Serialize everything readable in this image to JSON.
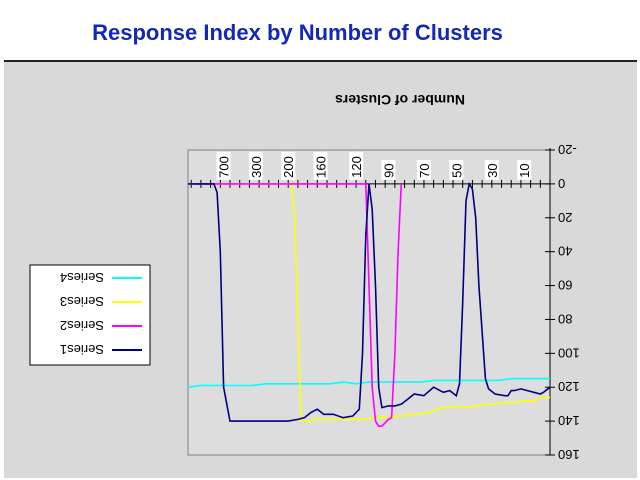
{
  "title": "Response Index by Number of Clusters",
  "chart_data": {
    "type": "line",
    "orientation": "rotated-180",
    "xlabel": "Number of Clusters",
    "ylabel": "",
    "x_tick_labels": [
      "700",
      "300",
      "200",
      "160",
      "120",
      "90",
      "70",
      "50",
      "30",
      "10"
    ],
    "y_ticks": [
      -20,
      0,
      20,
      40,
      60,
      80,
      100,
      120,
      140,
      160
    ],
    "ylim": [
      -20,
      160
    ],
    "grid": false,
    "legend": "left",
    "series": [
      {
        "name": "Series1",
        "color": "#000080",
        "points": [
          [
            0,
            120
          ],
          [
            2,
            123
          ],
          [
            3,
            124
          ],
          [
            5,
            123
          ],
          [
            7,
            122
          ],
          [
            9,
            121
          ],
          [
            11,
            122
          ],
          [
            12,
            122
          ],
          [
            13,
            125
          ],
          [
            14,
            125
          ],
          [
            17,
            124
          ],
          [
            19,
            121
          ],
          [
            20,
            115
          ],
          [
            22,
            60
          ],
          [
            23,
            20
          ],
          [
            24,
            3
          ],
          [
            25,
            0
          ],
          [
            26,
            10
          ],
          [
            27,
            70
          ],
          [
            28,
            118
          ],
          [
            29,
            125
          ],
          [
            31,
            122
          ],
          [
            33,
            123
          ],
          [
            36,
            120
          ],
          [
            39,
            125
          ],
          [
            42,
            124
          ],
          [
            44,
            127
          ],
          [
            46,
            130
          ],
          [
            48,
            131
          ],
          [
            50,
            131
          ],
          [
            52,
            132
          ],
          [
            53,
            120
          ],
          [
            54,
            60
          ],
          [
            55,
            15
          ],
          [
            56,
            0
          ],
          [
            57,
            30
          ],
          [
            58,
            100
          ],
          [
            59,
            133
          ],
          [
            61,
            137
          ],
          [
            64,
            138
          ],
          [
            67,
            136
          ],
          [
            70,
            136
          ],
          [
            72,
            133
          ],
          [
            74,
            135
          ],
          [
            76,
            138
          ],
          [
            78,
            139
          ],
          [
            81,
            140
          ],
          [
            84,
            140
          ],
          [
            87,
            140
          ],
          [
            90,
            140
          ],
          [
            93,
            140
          ],
          [
            96,
            140
          ],
          [
            99,
            140
          ],
          [
            101,
            120
          ],
          [
            102,
            40
          ],
          [
            103,
            5
          ],
          [
            104,
            0
          ],
          [
            107,
            0
          ],
          [
            112,
            0
          ]
        ]
      },
      {
        "name": "Series2",
        "color": "#ff00ff",
        "points": [
          [
            46,
            0
          ],
          [
            47,
            40
          ],
          [
            48,
            100
          ],
          [
            49,
            138
          ],
          [
            50,
            139
          ],
          [
            52,
            143
          ],
          [
            53,
            143
          ],
          [
            54,
            140
          ],
          [
            55,
            120
          ],
          [
            56,
            60
          ],
          [
            57,
            0
          ],
          [
            74,
            0
          ],
          [
            110,
            0
          ]
        ]
      },
      {
        "name": "Series3",
        "color": "#ffff00",
        "points": [
          [
            0,
            126
          ],
          [
            3,
            126
          ],
          [
            5,
            128
          ],
          [
            8,
            128
          ],
          [
            11,
            129
          ],
          [
            14,
            129
          ],
          [
            17,
            130
          ],
          [
            20,
            130
          ],
          [
            23,
            131
          ],
          [
            26,
            132
          ],
          [
            29,
            131
          ],
          [
            31,
            132
          ],
          [
            33,
            132
          ],
          [
            35,
            133
          ],
          [
            37,
            135
          ],
          [
            39,
            135
          ],
          [
            41,
            136
          ],
          [
            43,
            136
          ],
          [
            45,
            137
          ],
          [
            47,
            137
          ],
          [
            49,
            138
          ],
          [
            51,
            138
          ],
          [
            53,
            138
          ],
          [
            55,
            138
          ],
          [
            57,
            139
          ],
          [
            60,
            139
          ],
          [
            63,
            139
          ],
          [
            66,
            139
          ],
          [
            69,
            139
          ],
          [
            72,
            139
          ],
          [
            75,
            140
          ],
          [
            77,
            140
          ],
          [
            78,
            80
          ],
          [
            79,
            20
          ],
          [
            80,
            0
          ],
          [
            112,
            0
          ]
        ]
      },
      {
        "name": "Series4",
        "color": "#00ffff",
        "points": [
          [
            0,
            115
          ],
          [
            4,
            115
          ],
          [
            8,
            115
          ],
          [
            12,
            115
          ],
          [
            16,
            116
          ],
          [
            20,
            116
          ],
          [
            24,
            116
          ],
          [
            28,
            116
          ],
          [
            32,
            116
          ],
          [
            36,
            116
          ],
          [
            40,
            117
          ],
          [
            44,
            117
          ],
          [
            48,
            117
          ],
          [
            52,
            117
          ],
          [
            56,
            117
          ],
          [
            60,
            118
          ],
          [
            64,
            117
          ],
          [
            68,
            118
          ],
          [
            72,
            118
          ],
          [
            76,
            118
          ],
          [
            80,
            118
          ],
          [
            84,
            118
          ],
          [
            88,
            118
          ],
          [
            92,
            119
          ],
          [
            96,
            119
          ],
          [
            100,
            119
          ],
          [
            104,
            119
          ],
          [
            108,
            119
          ],
          [
            112,
            120
          ]
        ]
      }
    ]
  }
}
